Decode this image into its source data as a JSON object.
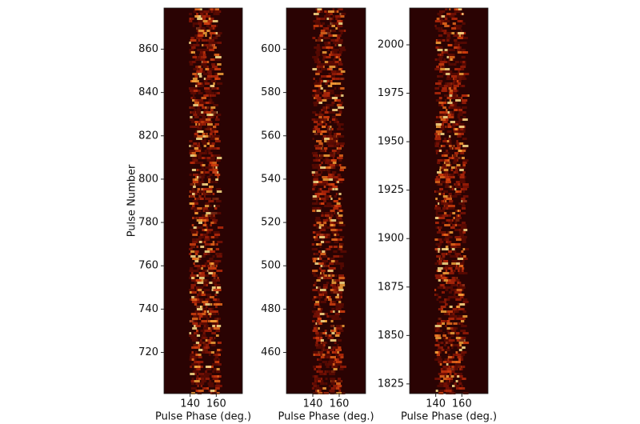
{
  "chart_data": [
    {
      "type": "heatmap",
      "x_label": "Pulse Phase (deg.)",
      "y_label": "Pulse Number",
      "xlim": [
        120,
        180
      ],
      "xticks": [
        140,
        160
      ],
      "ylim": [
        701,
        879
      ],
      "yticks": [
        720,
        740,
        760,
        780,
        800,
        820,
        840,
        860
      ]
    },
    {
      "type": "heatmap",
      "x_label": "Pulse Phase (deg.)",
      "xlim": [
        120,
        180
      ],
      "xticks": [
        140,
        160
      ],
      "ylim": [
        441,
        619
      ],
      "yticks": [
        460,
        480,
        500,
        520,
        540,
        560,
        580,
        600
      ]
    },
    {
      "type": "heatmap",
      "x_label": "Pulse Phase (deg.)",
      "xlim": [
        120,
        180
      ],
      "xticks": [
        140,
        160
      ],
      "ylim": [
        1820,
        2019
      ],
      "yticks": [
        1825,
        1850,
        1875,
        1900,
        1925,
        1950,
        1975,
        2000
      ]
    }
  ]
}
